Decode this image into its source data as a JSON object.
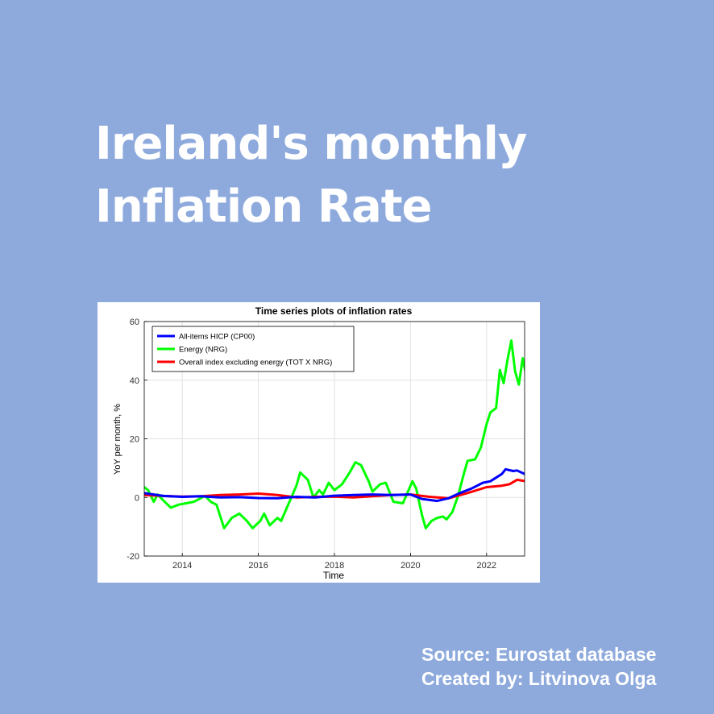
{
  "headline": {
    "line1": "Ireland's monthly",
    "line2": "Inflation Rate"
  },
  "credits": {
    "source": "Source: Eurostat database",
    "author": "Created by: Litvinova Olga"
  },
  "colors": {
    "background": "#8eaadd",
    "cp00": "#0000ff",
    "nrg": "#00ff00",
    "tot_x_nrg": "#ff0000"
  },
  "chart_data": {
    "type": "line",
    "title": "Time series plots of inflation rates",
    "xlabel": "Time",
    "ylabel": "YoY per month, %",
    "xlim": [
      2013.0,
      2023.0
    ],
    "ylim": [
      -20,
      60
    ],
    "xticks": [
      2014,
      2016,
      2018,
      2020,
      2022
    ],
    "yticks": [
      -20,
      0,
      20,
      40,
      60
    ],
    "grid": true,
    "legend": "top-left",
    "series": [
      {
        "name": "All-items HICP (CP00)",
        "color": "#0000ff",
        "points": [
          [
            2013.0,
            1.5
          ],
          [
            2013.5,
            0.5
          ],
          [
            2014.0,
            0.2
          ],
          [
            2014.5,
            0.4
          ],
          [
            2015.0,
            0.0
          ],
          [
            2015.5,
            0.1
          ],
          [
            2016.0,
            -0.2
          ],
          [
            2016.5,
            -0.3
          ],
          [
            2017.0,
            0.2
          ],
          [
            2017.5,
            0.0
          ],
          [
            2018.0,
            0.6
          ],
          [
            2018.5,
            0.8
          ],
          [
            2019.0,
            1.0
          ],
          [
            2019.5,
            0.8
          ],
          [
            2020.0,
            1.0
          ],
          [
            2020.3,
            -0.5
          ],
          [
            2020.7,
            -1.2
          ],
          [
            2021.0,
            -0.3
          ],
          [
            2021.3,
            1.5
          ],
          [
            2021.6,
            3.0
          ],
          [
            2021.9,
            5.0
          ],
          [
            2022.1,
            5.5
          ],
          [
            2022.4,
            8.0
          ],
          [
            2022.5,
            9.6
          ],
          [
            2022.7,
            9.0
          ],
          [
            2022.8,
            9.2
          ],
          [
            2023.0,
            8.0
          ]
        ]
      },
      {
        "name": "Energy (NRG)",
        "color": "#00ff00",
        "points": [
          [
            2013.0,
            3.5
          ],
          [
            2013.1,
            2.5
          ],
          [
            2013.25,
            -1.5
          ],
          [
            2013.35,
            1.0
          ],
          [
            2013.5,
            -1.0
          ],
          [
            2013.7,
            -3.5
          ],
          [
            2013.9,
            -2.5
          ],
          [
            2014.1,
            -2.0
          ],
          [
            2014.3,
            -1.5
          ],
          [
            2014.6,
            0.5
          ],
          [
            2014.75,
            -1.5
          ],
          [
            2014.9,
            -2.5
          ],
          [
            2015.1,
            -10.5
          ],
          [
            2015.3,
            -7.0
          ],
          [
            2015.5,
            -5.5
          ],
          [
            2015.7,
            -8.0
          ],
          [
            2015.85,
            -10.5
          ],
          [
            2016.05,
            -8.0
          ],
          [
            2016.15,
            -5.5
          ],
          [
            2016.3,
            -9.5
          ],
          [
            2016.5,
            -7.0
          ],
          [
            2016.6,
            -8.0
          ],
          [
            2016.8,
            -2.0
          ],
          [
            2017.0,
            4.0
          ],
          [
            2017.1,
            8.5
          ],
          [
            2017.3,
            6.0
          ],
          [
            2017.45,
            0.0
          ],
          [
            2017.6,
            2.5
          ],
          [
            2017.7,
            1.0
          ],
          [
            2017.85,
            5.0
          ],
          [
            2018.0,
            2.5
          ],
          [
            2018.2,
            4.5
          ],
          [
            2018.4,
            8.5
          ],
          [
            2018.55,
            12.0
          ],
          [
            2018.7,
            11.0
          ],
          [
            2018.9,
            5.5
          ],
          [
            2019.0,
            2.0
          ],
          [
            2019.2,
            4.5
          ],
          [
            2019.35,
            5.0
          ],
          [
            2019.55,
            -1.5
          ],
          [
            2019.8,
            -2.0
          ],
          [
            2019.95,
            2.5
          ],
          [
            2020.05,
            5.5
          ],
          [
            2020.15,
            3.0
          ],
          [
            2020.3,
            -6.0
          ],
          [
            2020.4,
            -10.5
          ],
          [
            2020.55,
            -8.0
          ],
          [
            2020.7,
            -7.0
          ],
          [
            2020.85,
            -6.5
          ],
          [
            2020.95,
            -7.5
          ],
          [
            2021.1,
            -5.0
          ],
          [
            2021.25,
            0.5
          ],
          [
            2021.4,
            8.0
          ],
          [
            2021.5,
            12.5
          ],
          [
            2021.7,
            13.0
          ],
          [
            2021.85,
            17.0
          ],
          [
            2022.0,
            25.0
          ],
          [
            2022.1,
            29.0
          ],
          [
            2022.25,
            30.5
          ],
          [
            2022.35,
            43.5
          ],
          [
            2022.45,
            39.0
          ],
          [
            2022.55,
            47.0
          ],
          [
            2022.65,
            53.5
          ],
          [
            2022.75,
            43.0
          ],
          [
            2022.85,
            38.5
          ],
          [
            2022.95,
            47.5
          ],
          [
            2023.05,
            41.0
          ],
          [
            2023.15,
            34.5
          ]
        ]
      },
      {
        "name": "Overall index excluding energy (TOT X NRG)",
        "color": "#ff0000",
        "points": [
          [
            2013.0,
            0.8
          ],
          [
            2013.5,
            0.5
          ],
          [
            2014.0,
            0.3
          ],
          [
            2014.5,
            0.4
          ],
          [
            2015.0,
            0.8
          ],
          [
            2015.5,
            1.0
          ],
          [
            2016.0,
            1.3
          ],
          [
            2016.5,
            0.8
          ],
          [
            2017.0,
            0.0
          ],
          [
            2017.5,
            0.2
          ],
          [
            2018.0,
            0.3
          ],
          [
            2018.5,
            0.0
          ],
          [
            2019.0,
            0.4
          ],
          [
            2019.5,
            0.8
          ],
          [
            2020.0,
            1.0
          ],
          [
            2020.5,
            0.2
          ],
          [
            2021.0,
            -0.3
          ],
          [
            2021.5,
            1.5
          ],
          [
            2022.0,
            3.5
          ],
          [
            2022.4,
            4.0
          ],
          [
            2022.6,
            4.5
          ],
          [
            2022.8,
            6.0
          ],
          [
            2023.0,
            5.6
          ],
          [
            2023.15,
            5.5
          ]
        ]
      }
    ]
  }
}
